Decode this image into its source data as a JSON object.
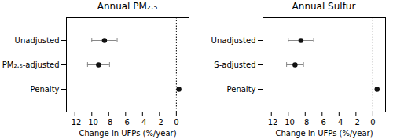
{
  "chart_data": [
    {
      "type": "errorbar",
      "title": "Annual PM₂.₅",
      "xlabel": "Change in UFPs (%/year)",
      "categories": [
        "Unadjusted",
        "PM₂.₅-adjusted",
        "Penalty"
      ],
      "values": [
        -8.5,
        -9.2,
        0.3
      ],
      "error_bars": {
        "minus": [
          1.5,
          1.3,
          0.1
        ],
        "plus": [
          1.5,
          1.3,
          0.1
        ],
        "color": "#888888"
      },
      "color": "#111111",
      "reference_line": 0,
      "xlim": [
        -13,
        1.5
      ],
      "xticks": [
        -12,
        -10,
        -8,
        -6,
        -4,
        -2,
        0
      ],
      "grid": false
    },
    {
      "type": "errorbar",
      "title": "Annual Sulfur",
      "xlabel": "Change in UFPs (%/year)",
      "categories": [
        "Unadjusted",
        "S-adjusted",
        "Penalty"
      ],
      "values": [
        -8.5,
        -9.2,
        0.5
      ],
      "error_bars": {
        "minus": [
          1.5,
          1.0,
          0.1
        ],
        "plus": [
          1.5,
          1.0,
          0.1
        ],
        "color": "#888888"
      },
      "color": "#111111",
      "reference_line": 0,
      "xlim": [
        -13,
        1.5
      ],
      "xticks": [
        -12,
        -10,
        -8,
        -6,
        -4,
        -2,
        0
      ],
      "grid": false
    }
  ]
}
